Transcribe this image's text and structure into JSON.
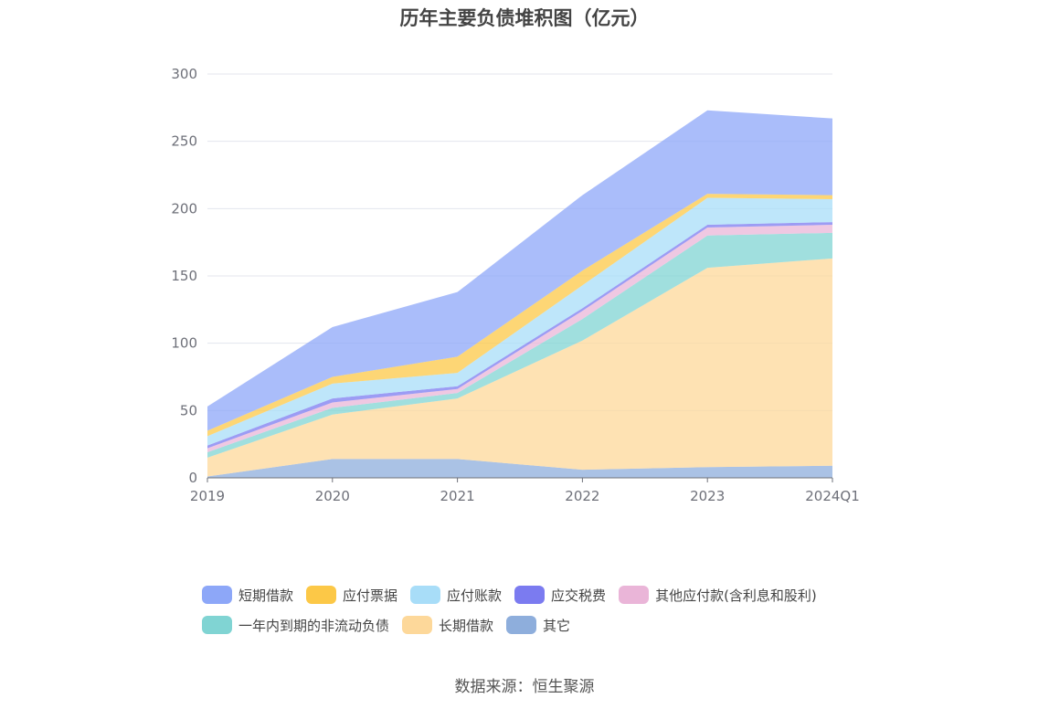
{
  "title": "历年主要负债堆积图（亿元）",
  "source": "数据来源：恒生聚源",
  "chart_data": {
    "type": "area",
    "stacked": true,
    "title": "历年主要负债堆积图（亿元）",
    "xlabel": "",
    "ylabel": "",
    "categories": [
      "2019",
      "2020",
      "2021",
      "2022",
      "2023",
      "2024Q1"
    ],
    "ylim": [
      0,
      300
    ],
    "yticks": [
      0,
      50,
      100,
      150,
      200,
      250,
      300
    ],
    "grid": true,
    "legend_position": "bottom",
    "series": [
      {
        "name": "其它",
        "color": "#8eaedc",
        "values": [
          1,
          14,
          14,
          6,
          8,
          9
        ]
      },
      {
        "name": "长期借款",
        "color": "#fdd89a",
        "values": [
          14,
          33,
          45,
          96,
          148,
          154
        ]
      },
      {
        "name": "一年内到期的非流动负债",
        "color": "#80d4d3",
        "values": [
          4,
          5,
          4,
          16,
          24,
          19
        ]
      },
      {
        "name": "其他应付款(含利息和股利)",
        "color": "#eab5d8",
        "values": [
          3,
          4,
          3,
          6,
          6,
          6
        ]
      },
      {
        "name": "应交税费",
        "color": "#7b7bf0",
        "values": [
          2,
          3,
          2,
          2,
          2,
          2
        ]
      },
      {
        "name": "应付账款",
        "color": "#a8ddf8",
        "values": [
          7,
          11,
          10,
          17,
          20,
          17
        ]
      },
      {
        "name": "应付票据",
        "color": "#fcc847",
        "values": [
          4,
          5,
          12,
          11,
          3,
          3
        ]
      },
      {
        "name": "短期借款",
        "color": "#8da7f8",
        "values": [
          18,
          37,
          48,
          56,
          62,
          57
        ]
      }
    ],
    "legend_order": [
      [
        "短期借款",
        "应付票据",
        "应付账款",
        "应交税费",
        "其他应付款(含利息和股利)"
      ],
      [
        "一年内到期的非流动负债",
        "长期借款",
        "其它"
      ]
    ]
  }
}
